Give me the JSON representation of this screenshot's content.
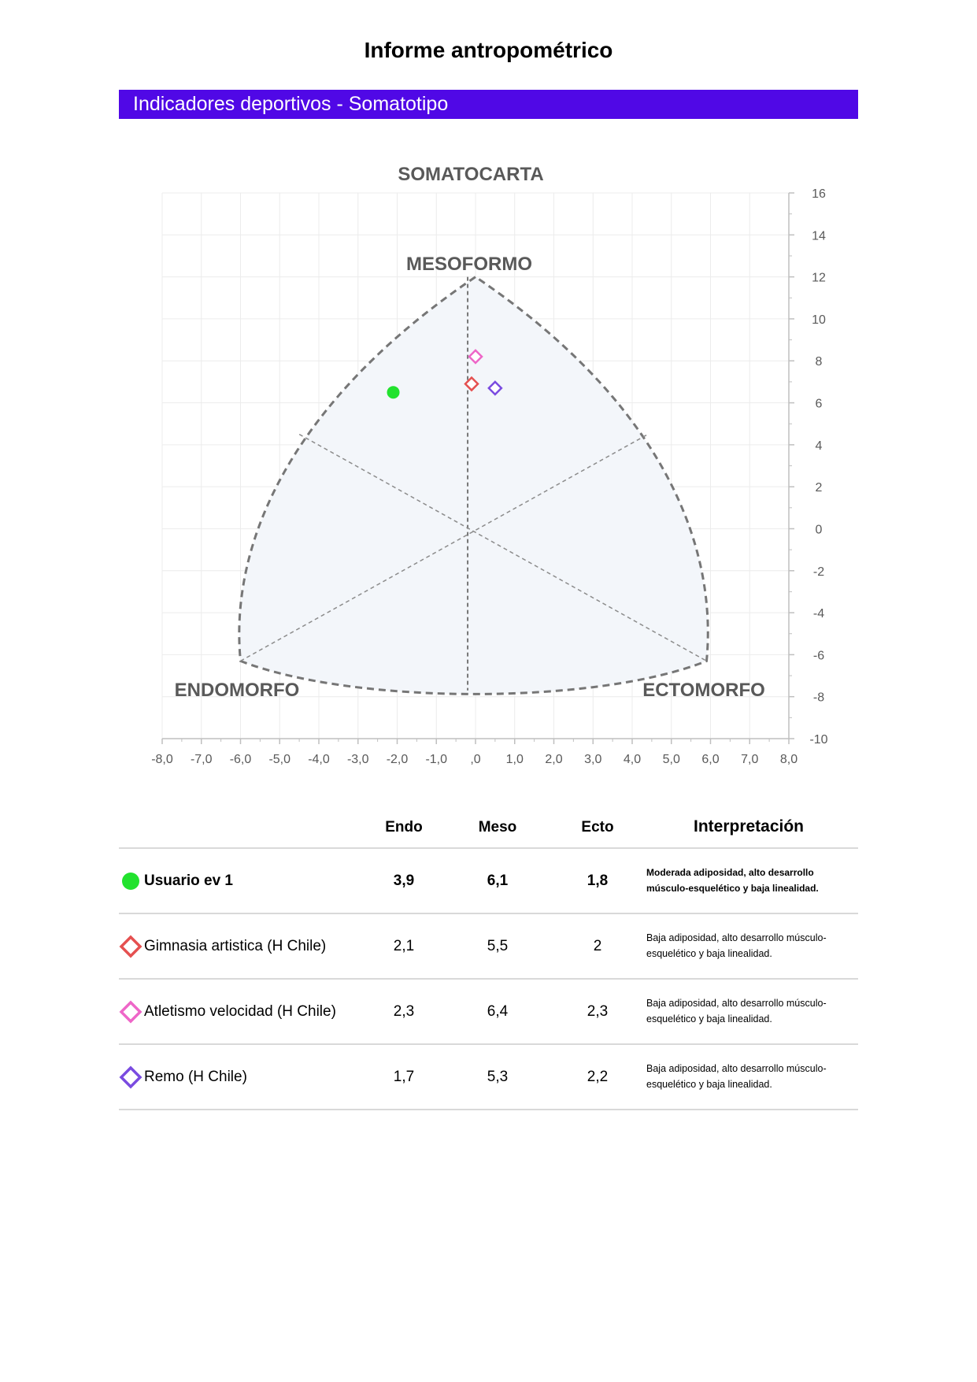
{
  "report": {
    "title": "Informe antropométrico",
    "section": "Indicadores deportivos - Somatotipo"
  },
  "chart_data": {
    "type": "scatter",
    "title": "SOMATOCARTA",
    "xlim": [
      -8,
      8
    ],
    "ylim": [
      -10,
      16
    ],
    "x_ticks": [
      "-8,0",
      "-7,0",
      "-6,0",
      "-5,0",
      "-4,0",
      "-3,0",
      "-2,0",
      "-1,0",
      ",0",
      "1,0",
      "2,0",
      "3,0",
      "4,0",
      "5,0",
      "6,0",
      "7,0",
      "8,0"
    ],
    "y_ticks": [
      "16",
      "14",
      "12",
      "10",
      "8",
      "6",
      "4",
      "2",
      "0",
      "-2",
      "-4",
      "-6",
      "-8",
      "-10"
    ],
    "regions": {
      "top": "MESOFORMO",
      "left": "ENDOMORFO",
      "right": "ECTOMORFO"
    },
    "grid": true,
    "points": [
      {
        "name": "Usuario ev 1",
        "x": -2.1,
        "y": 6.5,
        "marker": "circle",
        "color": "#22e22e"
      },
      {
        "name": "Gimnasia artistica (H Chile)",
        "x": -0.1,
        "y": 6.9,
        "marker": "diamond",
        "color": "#e55050"
      },
      {
        "name": "Atletismo velocidad (H Chile)",
        "x": 0.0,
        "y": 8.2,
        "marker": "diamond",
        "color": "#ee66c8"
      },
      {
        "name": "Remo (H Chile)",
        "x": 0.5,
        "y": 6.7,
        "marker": "diamond",
        "color": "#7a4be0"
      }
    ]
  },
  "table": {
    "headers": {
      "endo": "Endo",
      "meso": "Meso",
      "ecto": "Ecto",
      "interp": "Interpretación"
    },
    "rows": [
      {
        "name": "Usuario ev 1",
        "endo": "3,9",
        "meso": "6,1",
        "ecto": "1,8",
        "interp": "Moderada adiposidad, alto desarrollo músculo-esquelético y baja linealidad."
      },
      {
        "name": "Gimnasia artistica (H Chile)",
        "endo": "2,1",
        "meso": "5,5",
        "ecto": "2",
        "interp": "Baja adiposidad, alto desarrollo músculo-esquelético y baja linealidad."
      },
      {
        "name": "Atletismo velocidad (H Chile)",
        "endo": "2,3",
        "meso": "6,4",
        "ecto": "2,3",
        "interp": "Baja adiposidad, alto desarrollo músculo-esquelético y baja linealidad."
      },
      {
        "name": "Remo (H Chile)",
        "endo": "1,7",
        "meso": "5,3",
        "ecto": "2,2",
        "interp": "Baja adiposidad, alto desarrollo músculo-esquelético y baja linealidad."
      }
    ]
  }
}
